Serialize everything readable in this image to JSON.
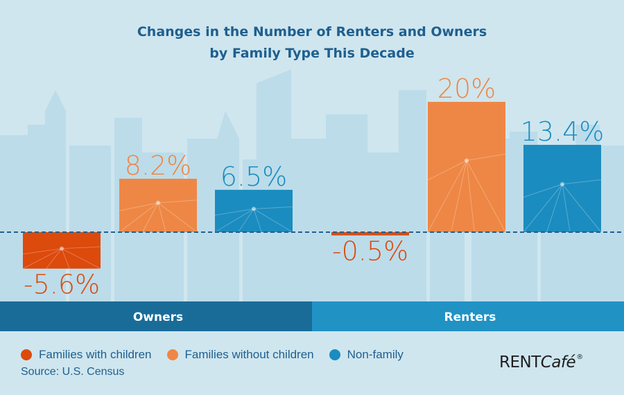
{
  "chart_data": {
    "type": "bar",
    "title": "Changes in the Number of Renters and Owners",
    "subtitle": "by Family Type This Decade",
    "categories": [
      "Owners",
      "Renters"
    ],
    "series": [
      {
        "name": "Families with children",
        "values": [
          -5.6,
          -0.5
        ],
        "labels": [
          "-5.6%",
          "-0.5%"
        ],
        "color": "#dc4a0c"
      },
      {
        "name": "Families without children",
        "values": [
          8.2,
          20
        ],
        "labels": [
          "8.2%",
          "20%"
        ],
        "color": "#ee8745"
      },
      {
        "name": "Non-family",
        "values": [
          6.5,
          13.4
        ],
        "labels": [
          "6.5%",
          "13.4%"
        ],
        "color": "#1b8cbf"
      }
    ],
    "unit": "%",
    "baseline": 0
  },
  "legend": [
    {
      "label": "Families with children",
      "color": "#dc4a0c"
    },
    {
      "label": "Families without children",
      "color": "#ee8745"
    },
    {
      "label": "Non-family",
      "color": "#1b8cbf"
    }
  ],
  "group_bar_colors": [
    "#1a6c98",
    "#2192c4"
  ],
  "source": "Source: U.S. Census",
  "brand": {
    "name": "RENT",
    "suffix": "Café",
    "mark": "®"
  }
}
